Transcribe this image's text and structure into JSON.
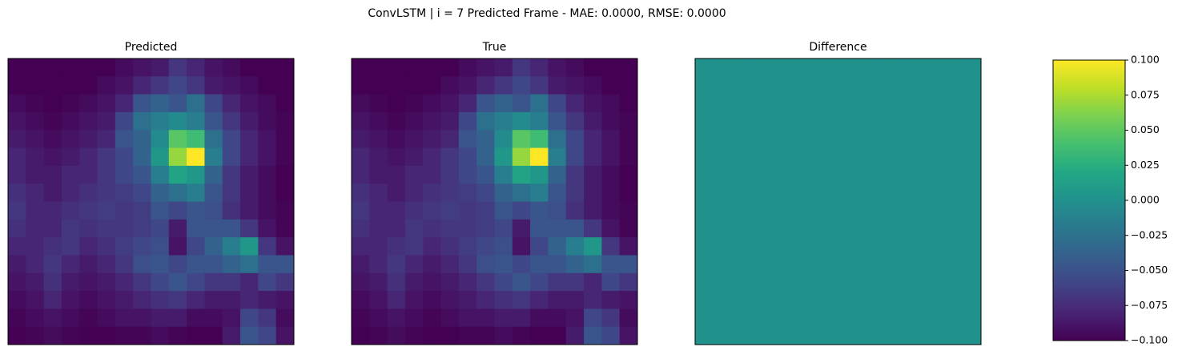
{
  "title": "ConvLSTM | i = 7 Predicted Frame - MAE: 0.0000, RMSE: 0.0000",
  "chart_data": [
    {
      "type": "heatmap",
      "title": "Predicted",
      "colormap": "viridis",
      "z": [
        [
          0.05,
          0.05,
          0.05,
          0.05,
          0.05,
          0.05,
          0.08,
          0.1,
          0.12,
          0.2,
          0.15,
          0.1,
          0.08,
          0.05,
          0.05,
          0.05
        ],
        [
          0.05,
          0.05,
          0.05,
          0.05,
          0.05,
          0.08,
          0.1,
          0.15,
          0.2,
          0.25,
          0.2,
          0.12,
          0.1,
          0.08,
          0.05,
          0.05
        ],
        [
          0.08,
          0.06,
          0.05,
          0.06,
          0.08,
          0.1,
          0.15,
          0.3,
          0.35,
          0.3,
          0.4,
          0.25,
          0.15,
          0.1,
          0.08,
          0.05
        ],
        [
          0.1,
          0.08,
          0.06,
          0.08,
          0.1,
          0.12,
          0.25,
          0.4,
          0.45,
          0.5,
          0.45,
          0.3,
          0.2,
          0.12,
          0.08,
          0.06
        ],
        [
          0.12,
          0.1,
          0.08,
          0.1,
          0.12,
          0.15,
          0.3,
          0.35,
          0.5,
          0.75,
          0.7,
          0.4,
          0.25,
          0.15,
          0.1,
          0.06
        ],
        [
          0.15,
          0.12,
          0.1,
          0.12,
          0.15,
          0.2,
          0.25,
          0.35,
          0.55,
          0.85,
          1.0,
          0.45,
          0.25,
          0.15,
          0.1,
          0.06
        ],
        [
          0.15,
          0.12,
          0.12,
          0.15,
          0.15,
          0.2,
          0.25,
          0.3,
          0.45,
          0.6,
          0.55,
          0.35,
          0.2,
          0.12,
          0.08,
          0.05
        ],
        [
          0.18,
          0.15,
          0.12,
          0.15,
          0.18,
          0.2,
          0.22,
          0.25,
          0.35,
          0.4,
          0.45,
          0.3,
          0.2,
          0.12,
          0.08,
          0.05
        ],
        [
          0.2,
          0.15,
          0.15,
          0.18,
          0.2,
          0.22,
          0.2,
          0.22,
          0.3,
          0.25,
          0.3,
          0.28,
          0.18,
          0.12,
          0.08,
          0.06
        ],
        [
          0.18,
          0.15,
          0.15,
          0.2,
          0.18,
          0.2,
          0.2,
          0.22,
          0.25,
          0.12,
          0.3,
          0.3,
          0.3,
          0.2,
          0.1,
          0.06
        ],
        [
          0.15,
          0.15,
          0.18,
          0.2,
          0.15,
          0.18,
          0.22,
          0.25,
          0.28,
          0.1,
          0.25,
          0.35,
          0.45,
          0.55,
          0.2,
          0.1
        ],
        [
          0.12,
          0.15,
          0.2,
          0.15,
          0.12,
          0.15,
          0.2,
          0.28,
          0.3,
          0.25,
          0.3,
          0.3,
          0.35,
          0.4,
          0.3,
          0.3
        ],
        [
          0.1,
          0.12,
          0.18,
          0.12,
          0.1,
          0.12,
          0.15,
          0.2,
          0.25,
          0.3,
          0.25,
          0.2,
          0.2,
          0.15,
          0.25,
          0.2
        ],
        [
          0.08,
          0.1,
          0.15,
          0.1,
          0.08,
          0.1,
          0.12,
          0.15,
          0.18,
          0.2,
          0.15,
          0.12,
          0.12,
          0.15,
          0.12,
          0.1
        ],
        [
          0.06,
          0.08,
          0.1,
          0.08,
          0.06,
          0.08,
          0.1,
          0.1,
          0.12,
          0.12,
          0.08,
          0.08,
          0.1,
          0.25,
          0.2,
          0.08
        ],
        [
          0.05,
          0.06,
          0.08,
          0.06,
          0.05,
          0.05,
          0.06,
          0.06,
          0.08,
          0.06,
          0.05,
          0.05,
          0.12,
          0.3,
          0.25,
          0.1
        ]
      ]
    },
    {
      "type": "heatmap",
      "title": "True",
      "colormap": "viridis",
      "z": [
        [
          0.05,
          0.05,
          0.05,
          0.05,
          0.05,
          0.05,
          0.08,
          0.1,
          0.12,
          0.2,
          0.15,
          0.1,
          0.08,
          0.05,
          0.05,
          0.05
        ],
        [
          0.05,
          0.05,
          0.05,
          0.05,
          0.05,
          0.08,
          0.1,
          0.15,
          0.2,
          0.25,
          0.2,
          0.12,
          0.1,
          0.08,
          0.05,
          0.05
        ],
        [
          0.08,
          0.06,
          0.05,
          0.06,
          0.08,
          0.1,
          0.15,
          0.3,
          0.35,
          0.3,
          0.4,
          0.25,
          0.15,
          0.1,
          0.08,
          0.05
        ],
        [
          0.1,
          0.08,
          0.06,
          0.08,
          0.1,
          0.12,
          0.25,
          0.4,
          0.45,
          0.5,
          0.45,
          0.3,
          0.2,
          0.12,
          0.08,
          0.06
        ],
        [
          0.12,
          0.1,
          0.08,
          0.1,
          0.12,
          0.15,
          0.3,
          0.35,
          0.5,
          0.75,
          0.7,
          0.4,
          0.25,
          0.15,
          0.1,
          0.06
        ],
        [
          0.15,
          0.12,
          0.1,
          0.12,
          0.15,
          0.2,
          0.25,
          0.35,
          0.55,
          0.85,
          1.0,
          0.45,
          0.25,
          0.15,
          0.1,
          0.06
        ],
        [
          0.15,
          0.12,
          0.12,
          0.15,
          0.15,
          0.2,
          0.25,
          0.3,
          0.45,
          0.6,
          0.55,
          0.35,
          0.2,
          0.12,
          0.08,
          0.05
        ],
        [
          0.18,
          0.15,
          0.12,
          0.15,
          0.18,
          0.2,
          0.22,
          0.25,
          0.35,
          0.4,
          0.45,
          0.3,
          0.2,
          0.12,
          0.08,
          0.05
        ],
        [
          0.2,
          0.15,
          0.15,
          0.18,
          0.2,
          0.22,
          0.2,
          0.22,
          0.3,
          0.25,
          0.3,
          0.28,
          0.18,
          0.12,
          0.08,
          0.06
        ],
        [
          0.18,
          0.15,
          0.15,
          0.2,
          0.18,
          0.2,
          0.2,
          0.22,
          0.25,
          0.12,
          0.3,
          0.3,
          0.3,
          0.2,
          0.1,
          0.06
        ],
        [
          0.15,
          0.15,
          0.18,
          0.2,
          0.15,
          0.18,
          0.22,
          0.25,
          0.28,
          0.1,
          0.25,
          0.35,
          0.45,
          0.55,
          0.2,
          0.1
        ],
        [
          0.12,
          0.15,
          0.2,
          0.15,
          0.12,
          0.15,
          0.2,
          0.28,
          0.3,
          0.25,
          0.3,
          0.3,
          0.35,
          0.4,
          0.3,
          0.3
        ],
        [
          0.1,
          0.12,
          0.18,
          0.12,
          0.1,
          0.12,
          0.15,
          0.2,
          0.25,
          0.3,
          0.25,
          0.2,
          0.2,
          0.15,
          0.25,
          0.2
        ],
        [
          0.08,
          0.1,
          0.15,
          0.1,
          0.08,
          0.1,
          0.12,
          0.15,
          0.18,
          0.2,
          0.15,
          0.12,
          0.12,
          0.15,
          0.12,
          0.1
        ],
        [
          0.06,
          0.08,
          0.1,
          0.08,
          0.06,
          0.08,
          0.1,
          0.1,
          0.12,
          0.12,
          0.08,
          0.08,
          0.1,
          0.25,
          0.2,
          0.08
        ],
        [
          0.05,
          0.06,
          0.08,
          0.06,
          0.05,
          0.05,
          0.06,
          0.06,
          0.08,
          0.06,
          0.05,
          0.05,
          0.12,
          0.3,
          0.25,
          0.1
        ]
      ]
    },
    {
      "type": "heatmap",
      "title": "Difference",
      "colormap": "viridis",
      "zlim": [
        -0.1,
        0.1
      ],
      "colorbar": {
        "ticks": [
          {
            "value": -0.1,
            "label": "−0.100"
          },
          {
            "value": -0.075,
            "label": "−0.075"
          },
          {
            "value": -0.05,
            "label": "−0.050"
          },
          {
            "value": -0.025,
            "label": "−0.025"
          },
          {
            "value": 0,
            "label": "0.000"
          },
          {
            "value": 0.025,
            "label": "0.025"
          },
          {
            "value": 0.05,
            "label": "0.050"
          },
          {
            "value": 0.075,
            "label": "0.075"
          },
          {
            "value": 0.1,
            "label": "0.100"
          }
        ]
      },
      "z": [
        [
          0,
          0,
          0,
          0,
          0,
          0,
          0,
          0,
          0,
          0,
          0,
          0,
          0,
          0,
          0,
          0
        ],
        [
          0,
          0,
          0,
          0,
          0,
          0,
          0,
          0,
          0,
          0,
          0,
          0,
          0,
          0,
          0,
          0
        ],
        [
          0,
          0,
          0,
          0,
          0,
          0,
          0,
          0,
          0,
          0,
          0,
          0,
          0,
          0,
          0,
          0
        ],
        [
          0,
          0,
          0,
          0,
          0,
          0,
          0,
          0,
          0,
          0,
          0,
          0,
          0,
          0,
          0,
          0
        ],
        [
          0,
          0,
          0,
          0,
          0,
          0,
          0,
          0,
          0,
          0,
          0,
          0,
          0,
          0,
          0,
          0
        ],
        [
          0,
          0,
          0,
          0,
          0,
          0,
          0,
          0,
          0,
          0,
          0,
          0,
          0,
          0,
          0,
          0
        ],
        [
          0,
          0,
          0,
          0,
          0,
          0,
          0,
          0,
          0,
          0,
          0,
          0,
          0,
          0,
          0,
          0
        ],
        [
          0,
          0,
          0,
          0,
          0,
          0,
          0,
          0,
          0,
          0,
          0,
          0,
          0,
          0,
          0,
          0
        ],
        [
          0,
          0,
          0,
          0,
          0,
          0,
          0,
          0,
          0,
          0,
          0,
          0,
          0,
          0,
          0,
          0
        ],
        [
          0,
          0,
          0,
          0,
          0,
          0,
          0,
          0,
          0,
          0,
          0,
          0,
          0,
          0,
          0,
          0
        ],
        [
          0,
          0,
          0,
          0,
          0,
          0,
          0,
          0,
          0,
          0,
          0,
          0,
          0,
          0,
          0,
          0
        ],
        [
          0,
          0,
          0,
          0,
          0,
          0,
          0,
          0,
          0,
          0,
          0,
          0,
          0,
          0,
          0,
          0
        ],
        [
          0,
          0,
          0,
          0,
          0,
          0,
          0,
          0,
          0,
          0,
          0,
          0,
          0,
          0,
          0,
          0
        ],
        [
          0,
          0,
          0,
          0,
          0,
          0,
          0,
          0,
          0,
          0,
          0,
          0,
          0,
          0,
          0,
          0
        ],
        [
          0,
          0,
          0,
          0,
          0,
          0,
          0,
          0,
          0,
          0,
          0,
          0,
          0,
          0,
          0,
          0
        ],
        [
          0,
          0,
          0,
          0,
          0,
          0,
          0,
          0,
          0,
          0,
          0,
          0,
          0,
          0,
          0,
          0
        ]
      ]
    }
  ]
}
